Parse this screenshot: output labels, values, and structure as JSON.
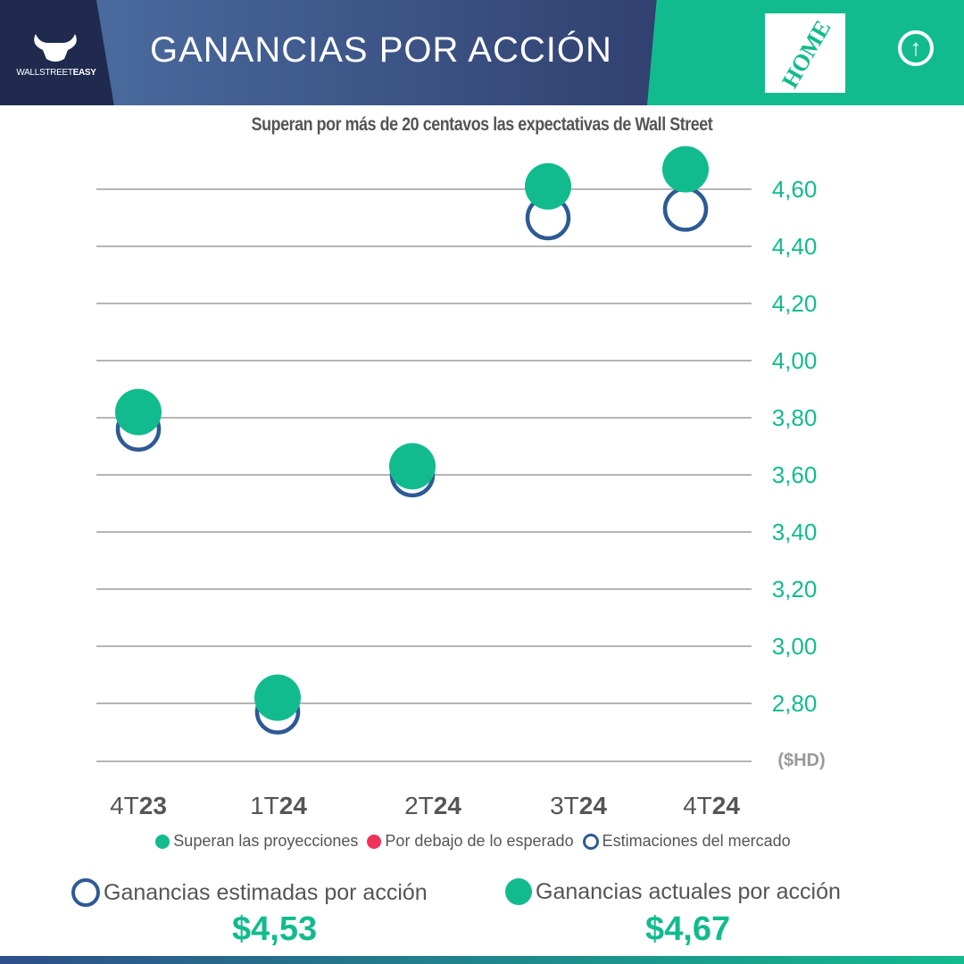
{
  "header": {
    "brand_light": "WALLSTREET",
    "brand_bold": "EASY",
    "title": "GANANCIAS POR ACCIÓN",
    "company_logo": "The Home Depot",
    "trend_icon": "arrow-up-circle-icon"
  },
  "colors": {
    "actual": "#12bb8e",
    "estimate": "#2e5a94",
    "below": "#f0325a",
    "header_dark": "#1f2a4e"
  },
  "chart_data": {
    "type": "scatter",
    "title": "Superan por más de 20 centavos las expectativas de Wall Street",
    "categories": [
      "4T23",
      "1T24",
      "2T24",
      "3T24",
      "4T24"
    ],
    "series": [
      {
        "name": "Estimaciones del mercado",
        "values": [
          3.76,
          2.77,
          3.6,
          4.5,
          4.53
        ]
      },
      {
        "name": "Superan las proyecciones",
        "values": [
          3.82,
          2.82,
          3.63,
          4.61,
          4.67
        ]
      }
    ],
    "yticks": [
      "4,60",
      "4,40",
      "4,20",
      "4,00",
      "3,80",
      "3,60",
      "3,40",
      "3,20",
      "3,00",
      "2,80"
    ],
    "ytick_values": [
      4.6,
      4.4,
      4.2,
      4.0,
      3.8,
      3.6,
      3.4,
      3.2,
      3.0,
      2.8
    ],
    "ylabel": "($HD)",
    "ylim": [
      2.6,
      4.75
    ],
    "grid": true,
    "yaxis_position": "right",
    "legend_placement": "bottom"
  },
  "legend": [
    "Superan las proyecciones",
    "Por debajo de lo esperado",
    "Estimaciones del mercado"
  ],
  "summary": {
    "estimate_label": "Ganancias estimadas por acción",
    "estimate_value": "$4,53",
    "actual_label": "Ganancias actuales por acción",
    "actual_value": "$4,67"
  }
}
